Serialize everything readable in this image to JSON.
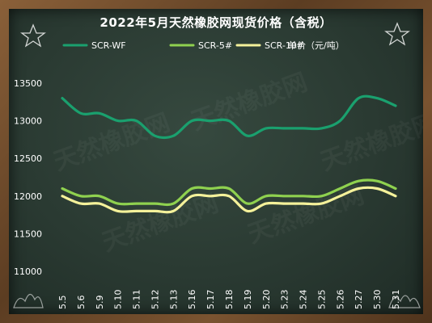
{
  "chart_data": {
    "type": "line",
    "title": "2022年5月天然橡胶网现货价格（含税）",
    "unit_label": "单价（元/吨）",
    "categories": [
      "5.5",
      "5.6",
      "5.9",
      "5.10",
      "5.11",
      "5.12",
      "5.13",
      "5.16",
      "5.17",
      "5.18",
      "5.19",
      "5.20",
      "5.23",
      "5.24",
      "5.25",
      "5.26",
      "5.27",
      "5.30",
      "5.31"
    ],
    "series": [
      {
        "name": "SCR-WF",
        "color": "#1aa06e",
        "values": [
          13300,
          13100,
          13100,
          13000,
          13000,
          12800,
          12800,
          13000,
          13000,
          13000,
          12800,
          12900,
          12900,
          12900,
          12900,
          13000,
          13300,
          13300,
          13200
        ]
      },
      {
        "name": "SCR-5#",
        "color": "#8fd14f",
        "values": [
          12100,
          12000,
          12000,
          11900,
          11900,
          11900,
          11900,
          12100,
          12100,
          12100,
          11900,
          12000,
          12000,
          12000,
          12000,
          12100,
          12200,
          12200,
          12100
        ]
      },
      {
        "name": "SCR-10#",
        "color": "#f4f19a",
        "values": [
          12000,
          11900,
          11900,
          11800,
          11800,
          11800,
          11800,
          12000,
          12000,
          12000,
          11800,
          11900,
          11900,
          11900,
          11900,
          12000,
          12100,
          12100,
          12000
        ]
      }
    ],
    "y_ticks": [
      "11000",
      "11500",
      "12000",
      "12500",
      "13000",
      "13500"
    ],
    "ylim": [
      11000,
      13500
    ],
    "grid": false,
    "legend_position": "top"
  },
  "watermark": "天然橡胶网",
  "colors": {
    "board": "#2a3a32",
    "frame": "#6b4a2b",
    "text": "#ffffff"
  }
}
